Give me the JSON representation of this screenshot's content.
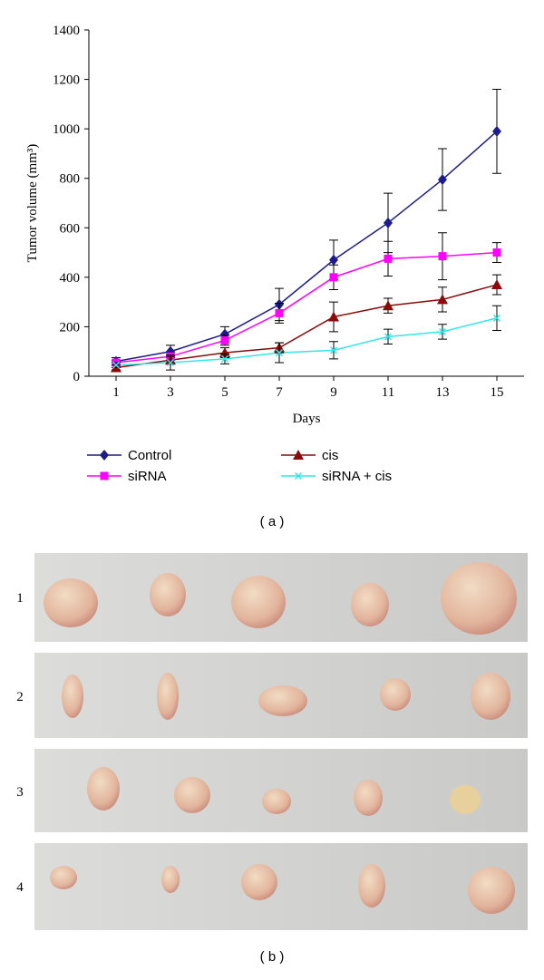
{
  "chart_data": {
    "type": "line",
    "y_label": "Tumor volume (mm³)",
    "x_label": "Days",
    "x": [
      1,
      3,
      5,
      7,
      9,
      11,
      13,
      15
    ],
    "xlim": [
      0,
      16
    ],
    "xticks": [
      1,
      3,
      5,
      7,
      9,
      11,
      13,
      15
    ],
    "ylim": [
      0,
      1400
    ],
    "yticks": [
      0,
      200,
      400,
      600,
      800,
      1000,
      1200,
      1400
    ],
    "grid": false,
    "series": [
      {
        "name": "Control",
        "color": "#1c1c8a",
        "marker": "diamond",
        "values": [
          60,
          100,
          170,
          290,
          470,
          620,
          795,
          990
        ],
        "errors": [
          15,
          25,
          30,
          65,
          80,
          120,
          125,
          170
        ]
      },
      {
        "name": "siRNA",
        "color": "#ff00ff",
        "marker": "square",
        "values": [
          55,
          80,
          145,
          255,
          400,
          475,
          485,
          500
        ],
        "errors": [
          10,
          15,
          20,
          40,
          50,
          70,
          95,
          40
        ]
      },
      {
        "name": "cis",
        "color": "#8b0a0a",
        "marker": "triangle",
        "values": [
          35,
          65,
          95,
          115,
          240,
          285,
          310,
          370
        ],
        "errors": [
          10,
          15,
          20,
          20,
          60,
          30,
          50,
          40
        ]
      },
      {
        "name": "siRNA + cis",
        "color": "#33e6e6",
        "marker": "x",
        "values": [
          45,
          55,
          70,
          95,
          105,
          160,
          180,
          235
        ],
        "errors": [
          10,
          30,
          20,
          40,
          35,
          30,
          30,
          50
        ]
      }
    ]
  },
  "panel_labels": [
    "( a )",
    "( b )"
  ],
  "photo_rows": [
    "1",
    "2",
    "3",
    "4"
  ]
}
